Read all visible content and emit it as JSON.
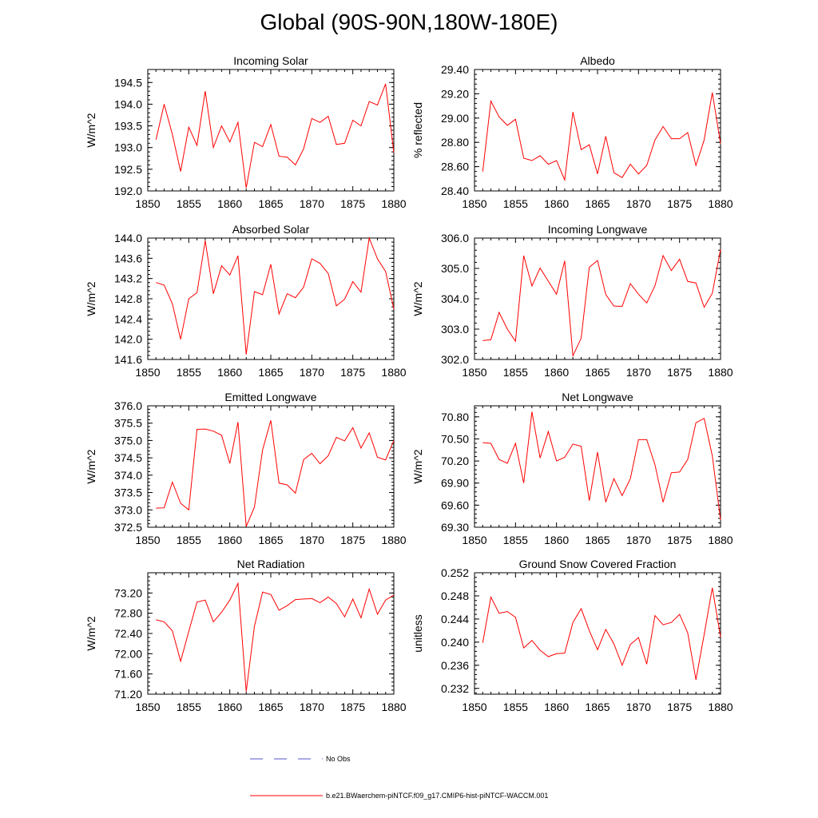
{
  "figure": {
    "title": "Global (90S-90N,180W-180E)",
    "legend": [
      {
        "label": "No Obs",
        "color": "#5555cc",
        "style": "dashed"
      },
      {
        "label": "b.e21.BWaerchem-piNTCF.f09_g17.CMIP6-hist-piNTCF-WACCM.001",
        "color": "#ff0000",
        "style": "solid"
      }
    ]
  },
  "chart_data": [
    {
      "type": "line",
      "title": "Incoming Solar",
      "ylabel": "W/m^2",
      "xlim": [
        1850,
        1880
      ],
      "ylim": [
        192.0,
        194.8
      ],
      "xticks": [
        "1850",
        "1855",
        "1860",
        "1865",
        "1870",
        "1875",
        "1880"
      ],
      "yticks": [
        "192.0",
        "192.5",
        "193.0",
        "193.5",
        "194.0",
        "194.5"
      ],
      "color": "#ff0000",
      "x": [
        1851,
        1852,
        1853,
        1854,
        1855,
        1856,
        1857,
        1858,
        1859,
        1860,
        1861,
        1862,
        1863,
        1864,
        1865,
        1866,
        1867,
        1868,
        1869,
        1870,
        1871,
        1872,
        1873,
        1874,
        1875,
        1876,
        1877,
        1878,
        1879,
        1880
      ],
      "y": [
        193.18,
        194.0,
        193.3,
        192.45,
        193.47,
        193.05,
        194.3,
        193.0,
        193.5,
        193.13,
        193.58,
        192.07,
        193.12,
        193.02,
        193.53,
        192.8,
        192.78,
        192.6,
        192.97,
        193.67,
        193.58,
        193.72,
        193.07,
        193.1,
        193.63,
        193.5,
        194.06,
        193.98,
        194.47,
        192.88
      ]
    },
    {
      "type": "line",
      "title": "Albedo",
      "ylabel": "% reflected",
      "xlim": [
        1850,
        1880
      ],
      "ylim": [
        28.4,
        29.4
      ],
      "xticks": [
        "1850",
        "1855",
        "1860",
        "1865",
        "1870",
        "1875",
        "1880"
      ],
      "yticks": [
        "28.40",
        "28.60",
        "28.80",
        "29.00",
        "29.20",
        "29.40"
      ],
      "color": "#ff0000",
      "x": [
        1851,
        1852,
        1853,
        1854,
        1855,
        1856,
        1857,
        1858,
        1859,
        1860,
        1861,
        1862,
        1863,
        1864,
        1865,
        1866,
        1867,
        1868,
        1869,
        1870,
        1871,
        1872,
        1873,
        1874,
        1875,
        1876,
        1877,
        1878,
        1879,
        1880
      ],
      "y": [
        28.56,
        29.14,
        29.01,
        28.94,
        28.99,
        28.67,
        28.65,
        28.69,
        28.62,
        28.65,
        28.49,
        29.05,
        28.74,
        28.78,
        28.54,
        28.85,
        28.55,
        28.51,
        28.62,
        28.54,
        28.61,
        28.82,
        28.93,
        28.83,
        28.83,
        28.88,
        28.61,
        28.82,
        29.21,
        28.79
      ]
    },
    {
      "type": "line",
      "title": "Absorbed Solar",
      "ylabel": "W/m^2",
      "xlim": [
        1850,
        1880
      ],
      "ylim": [
        141.6,
        144.0
      ],
      "xticks": [
        "1850",
        "1855",
        "1860",
        "1865",
        "1870",
        "1875",
        "1880"
      ],
      "yticks": [
        "141.6",
        "142.0",
        "142.4",
        "142.8",
        "143.2",
        "143.6",
        "144.0"
      ],
      "color": "#ff0000",
      "x": [
        1851,
        1852,
        1853,
        1854,
        1855,
        1856,
        1857,
        1858,
        1859,
        1860,
        1861,
        1862,
        1863,
        1864,
        1865,
        1866,
        1867,
        1868,
        1869,
        1870,
        1871,
        1872,
        1873,
        1874,
        1875,
        1876,
        1877,
        1878,
        1879,
        1880
      ],
      "y": [
        143.12,
        143.07,
        142.7,
        142.0,
        142.8,
        142.92,
        143.95,
        142.9,
        143.45,
        143.27,
        143.65,
        141.7,
        142.94,
        142.88,
        143.48,
        142.5,
        142.9,
        142.82,
        143.03,
        143.59,
        143.5,
        143.3,
        142.66,
        142.79,
        143.14,
        142.93,
        144.0,
        143.59,
        143.34,
        142.6
      ]
    },
    {
      "type": "line",
      "title": "Incoming Longwave",
      "ylabel": "W/m^2",
      "xlim": [
        1850,
        1880
      ],
      "ylim": [
        302.0,
        306.0
      ],
      "xticks": [
        "1850",
        "1855",
        "1860",
        "1865",
        "1870",
        "1875",
        "1880"
      ],
      "yticks": [
        "302.0",
        "303.0",
        "304.0",
        "305.0",
        "306.0"
      ],
      "color": "#ff0000",
      "x": [
        1851,
        1852,
        1853,
        1854,
        1855,
        1856,
        1857,
        1858,
        1859,
        1860,
        1861,
        1862,
        1863,
        1864,
        1865,
        1866,
        1867,
        1868,
        1869,
        1870,
        1871,
        1872,
        1873,
        1874,
        1875,
        1876,
        1877,
        1878,
        1879,
        1880
      ],
      "y": [
        302.62,
        302.65,
        303.55,
        303.0,
        302.6,
        305.42,
        304.42,
        305.01,
        304.58,
        304.15,
        305.25,
        302.12,
        302.7,
        305.04,
        305.26,
        304.14,
        303.76,
        303.75,
        304.5,
        304.15,
        303.86,
        304.43,
        305.42,
        304.93,
        305.3,
        304.57,
        304.52,
        303.72,
        304.18,
        305.63
      ]
    },
    {
      "type": "line",
      "title": "Emitted Longwave",
      "ylabel": "W/m^2",
      "xlim": [
        1850,
        1880
      ],
      "ylim": [
        372.5,
        376.0
      ],
      "xticks": [
        "1850",
        "1855",
        "1860",
        "1865",
        "1870",
        "1875",
        "1880"
      ],
      "yticks": [
        "372.5",
        "373.0",
        "373.5",
        "374.0",
        "374.5",
        "375.0",
        "375.5",
        "376.0"
      ],
      "color": "#ff0000",
      "x": [
        1851,
        1852,
        1853,
        1854,
        1855,
        1856,
        1857,
        1858,
        1859,
        1860,
        1861,
        1862,
        1863,
        1864,
        1865,
        1866,
        1867,
        1868,
        1869,
        1870,
        1871,
        1872,
        1873,
        1874,
        1875,
        1876,
        1877,
        1878,
        1879,
        1880
      ],
      "y": [
        373.05,
        373.06,
        373.8,
        373.19,
        373.0,
        375.32,
        375.33,
        375.27,
        375.15,
        374.34,
        375.53,
        372.52,
        373.08,
        374.73,
        375.58,
        373.77,
        373.72,
        373.48,
        374.45,
        374.63,
        374.33,
        374.56,
        375.09,
        374.99,
        375.37,
        374.78,
        375.22,
        374.52,
        374.44,
        375.0
      ]
    },
    {
      "type": "line",
      "title": "Net Longwave",
      "ylabel": "W/m^2",
      "xlim": [
        1850,
        1880
      ],
      "ylim": [
        69.3,
        70.95
      ],
      "xticks": [
        "1850",
        "1855",
        "1860",
        "1865",
        "1870",
        "1875",
        "1880"
      ],
      "yticks": [
        "69.30",
        "69.60",
        "69.90",
        "70.20",
        "70.50",
        "70.80"
      ],
      "color": "#ff0000",
      "x": [
        1851,
        1852,
        1853,
        1854,
        1855,
        1856,
        1857,
        1858,
        1859,
        1860,
        1861,
        1862,
        1863,
        1864,
        1865,
        1866,
        1867,
        1868,
        1869,
        1870,
        1871,
        1872,
        1873,
        1874,
        1875,
        1876,
        1877,
        1878,
        1879,
        1880
      ],
      "y": [
        70.45,
        70.44,
        70.22,
        70.17,
        70.44,
        69.9,
        70.87,
        70.24,
        70.6,
        70.2,
        70.25,
        70.43,
        70.4,
        69.66,
        70.32,
        69.64,
        69.96,
        69.73,
        69.96,
        70.49,
        70.49,
        70.15,
        69.64,
        70.04,
        70.05,
        70.22,
        70.72,
        70.78,
        70.27,
        69.4
      ]
    },
    {
      "type": "line",
      "title": "Net Radiation",
      "ylabel": "W/m^2",
      "xlim": [
        1850,
        1880
      ],
      "ylim": [
        71.2,
        73.6
      ],
      "xticks": [
        "1850",
        "1855",
        "1860",
        "1865",
        "1870",
        "1875",
        "1880"
      ],
      "yticks": [
        "71.20",
        "71.60",
        "72.00",
        "72.40",
        "72.80",
        "73.20"
      ],
      "color": "#ff0000",
      "x": [
        1851,
        1852,
        1853,
        1854,
        1855,
        1856,
        1857,
        1858,
        1859,
        1860,
        1861,
        1862,
        1863,
        1864,
        1865,
        1866,
        1867,
        1868,
        1869,
        1870,
        1871,
        1872,
        1873,
        1874,
        1875,
        1876,
        1877,
        1878,
        1879,
        1880
      ],
      "y": [
        72.67,
        72.63,
        72.45,
        71.85,
        72.44,
        73.02,
        73.06,
        72.63,
        72.82,
        73.06,
        73.39,
        71.25,
        72.54,
        73.22,
        73.17,
        72.86,
        72.95,
        73.07,
        73.08,
        73.09,
        73.01,
        73.12,
        72.99,
        72.73,
        73.08,
        72.71,
        73.28,
        72.78,
        73.06,
        73.16
      ]
    },
    {
      "type": "line",
      "title": "Ground Snow Covered Fraction",
      "ylabel": "unitless",
      "xlim": [
        1850,
        1880
      ],
      "ylim": [
        0.231,
        0.252
      ],
      "xticks": [
        "1850",
        "1855",
        "1860",
        "1865",
        "1870",
        "1875",
        "1880"
      ],
      "yticks": [
        "0.232",
        "0.236",
        "0.240",
        "0.244",
        "0.248",
        "0.252"
      ],
      "color": "#ff0000",
      "x": [
        1851,
        1852,
        1853,
        1854,
        1855,
        1856,
        1857,
        1858,
        1859,
        1860,
        1861,
        1862,
        1863,
        1864,
        1865,
        1866,
        1867,
        1868,
        1869,
        1870,
        1871,
        1872,
        1873,
        1874,
        1875,
        1876,
        1877,
        1878,
        1879,
        1880
      ],
      "y": [
        0.2399,
        0.2478,
        0.245,
        0.2453,
        0.2443,
        0.239,
        0.2403,
        0.2386,
        0.2375,
        0.238,
        0.2381,
        0.2434,
        0.2458,
        0.242,
        0.2387,
        0.2422,
        0.2397,
        0.236,
        0.2396,
        0.2408,
        0.2362,
        0.2446,
        0.243,
        0.2434,
        0.2448,
        0.2416,
        0.2335,
        0.2413,
        0.2494,
        0.2409
      ]
    }
  ]
}
